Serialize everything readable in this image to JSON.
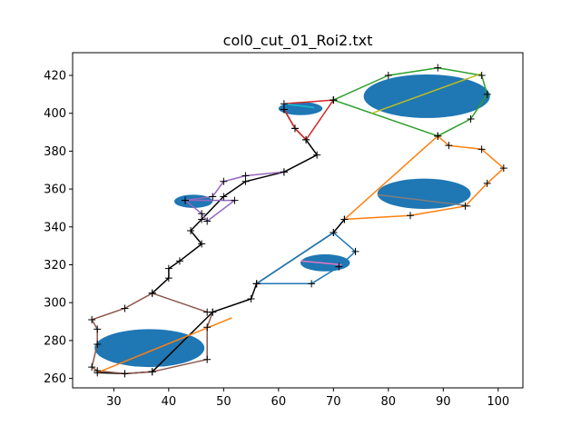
{
  "chart_data": {
    "type": "line",
    "title": "col0_cut_01_Roi2.txt",
    "xlabel": "",
    "ylabel": "",
    "xlim": [
      22.5,
      104.5
    ],
    "ylim": [
      255,
      432
    ],
    "grid": false,
    "xticks": [
      30,
      40,
      50,
      60,
      70,
      80,
      90,
      100
    ],
    "yticks": [
      260,
      280,
      300,
      320,
      340,
      360,
      380,
      400,
      420
    ],
    "ellipses": [
      {
        "cx": 36.5,
        "cy": 276,
        "w": 20,
        "h": 20,
        "color": "#1f77b4"
      },
      {
        "cx": 44.5,
        "cy": 353.5,
        "w": 7,
        "h": 7,
        "color": "#1f77b4"
      },
      {
        "cx": 64,
        "cy": 402.5,
        "w": 8,
        "h": 7,
        "color": "#1f77b4"
      },
      {
        "cx": 87,
        "cy": 409,
        "w": 23,
        "h": 23,
        "color": "#1f77b4"
      },
      {
        "cx": 86.5,
        "cy": 357.5,
        "w": 17,
        "h": 16,
        "color": "#1f77b4"
      },
      {
        "cx": 68.5,
        "cy": 321,
        "w": 9,
        "h": 9,
        "color": "#1f77b4"
      }
    ],
    "series": [
      {
        "color": "#000000",
        "markers": true,
        "x": [
          27,
          32,
          37,
          48,
          55,
          56,
          70,
          72
        ],
        "y": [
          263,
          262.5,
          263.5,
          295,
          302,
          310,
          337,
          344
        ]
      },
      {
        "color": "#000000",
        "markers": true,
        "x": [
          37,
          40,
          40,
          42,
          46,
          44,
          46,
          50,
          54,
          61,
          67,
          65,
          63,
          61
        ],
        "y": [
          305,
          313,
          318,
          322,
          331,
          338,
          344,
          356,
          364,
          369,
          378,
          386,
          392,
          402
        ]
      },
      {
        "color": "#8c564b",
        "markers": true,
        "x": [
          47,
          37,
          32,
          26,
          27,
          27,
          26,
          27,
          32,
          37,
          47,
          47,
          48
        ],
        "y": [
          295,
          305,
          297,
          291,
          286,
          278,
          266,
          264,
          262.5,
          263.5,
          270,
          287,
          295
        ]
      },
      {
        "color": "#ff7f0e",
        "markers": false,
        "x": [
          27,
          51.5
        ],
        "y": [
          263,
          292
        ]
      },
      {
        "color": "#9467bd",
        "markers": true,
        "x": [
          61,
          54,
          50,
          48,
          43,
          46,
          47,
          52,
          43
        ],
        "y": [
          369,
          367,
          364,
          356,
          354,
          347,
          343,
          354,
          354
        ]
      },
      {
        "color": "#d62728",
        "markers": true,
        "x": [
          61,
          63,
          65,
          70,
          61
        ],
        "y": [
          402,
          392,
          386,
          407,
          405
        ]
      },
      {
        "color": "#17becf",
        "markers": false,
        "x": [
          61,
          66.5
        ],
        "y": [
          405,
          403
        ]
      },
      {
        "color": "#2ca02c",
        "markers": true,
        "x": [
          70,
          80,
          89,
          97,
          98,
          95,
          89,
          70
        ],
        "y": [
          407,
          420,
          424,
          420,
          410,
          397,
          388,
          407
        ]
      },
      {
        "color": "#bcbd22",
        "markers": false,
        "x": [
          77,
          97
        ],
        "y": [
          400,
          421
        ]
      },
      {
        "color": "#ff7f0e",
        "markers": true,
        "x": [
          72,
          84,
          94,
          98,
          101,
          97,
          91,
          89,
          72
        ],
        "y": [
          344,
          346,
          351,
          363,
          371,
          381,
          383,
          388,
          344
        ]
      },
      {
        "color": "#7f7f7f",
        "markers": false,
        "x": [
          78,
          95
        ],
        "y": [
          357,
          351
        ]
      },
      {
        "color": "#1f77b4",
        "markers": true,
        "x": [
          56,
          66,
          71,
          74,
          70,
          56
        ],
        "y": [
          310,
          310,
          319,
          327,
          337,
          310
        ]
      },
      {
        "color": "#e377c2",
        "markers": false,
        "x": [
          64,
          71.5
        ],
        "y": [
          322,
          320
        ]
      }
    ]
  }
}
